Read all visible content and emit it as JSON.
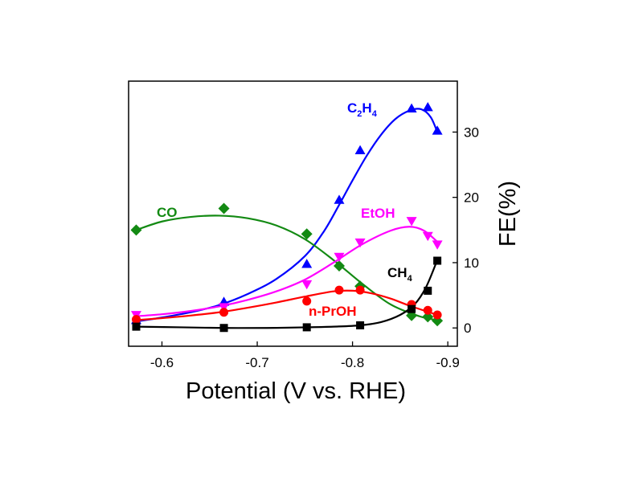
{
  "chart_data": {
    "type": "scatter",
    "xlabel": "Potential (V vs. RHE)",
    "ylabel": "FE(%)",
    "xlim": [
      -0.565,
      -0.91
    ],
    "ylim": [
      -2.8,
      37.8
    ],
    "x_reversed": true,
    "y_axis_side": "right",
    "x_ticks": [
      -0.6,
      -0.7,
      -0.8,
      -0.9
    ],
    "x_tick_labels": [
      "-0.6",
      "-0.7",
      "-0.8",
      "-0.9"
    ],
    "y_ticks": [
      0,
      10,
      20,
      30
    ],
    "y_tick_labels": [
      "0",
      "10",
      "20",
      "30"
    ],
    "grid": false,
    "series": [
      {
        "key": "c2h4",
        "label_main": "C",
        "label_sub1": "2",
        "label_mid": "H",
        "label_sub2": "4",
        "color": "#0000ff",
        "marker": "triangle-up",
        "x": [
          -0.573,
          -0.665,
          -0.752,
          -0.786,
          -0.808,
          -0.862,
          -0.879,
          -0.889
        ],
        "y": [
          1.2,
          4.0,
          9.8,
          19.6,
          27.2,
          33.6,
          33.8,
          30.2
        ],
        "curve_x": [
          -0.573,
          -0.6,
          -0.63,
          -0.66,
          -0.69,
          -0.72,
          -0.75,
          -0.77,
          -0.785,
          -0.8,
          -0.815,
          -0.83,
          -0.845,
          -0.86,
          -0.872,
          -0.882,
          -0.889
        ],
        "curve_y": [
          1.0,
          1.6,
          2.4,
          3.5,
          5.2,
          7.5,
          11.0,
          14.8,
          18.6,
          22.6,
          26.4,
          29.6,
          32.0,
          33.3,
          33.5,
          32.3,
          30.0
        ]
      },
      {
        "key": "co",
        "label": "CO",
        "color": "#138a13",
        "marker": "diamond",
        "x": [
          -0.573,
          -0.665,
          -0.752,
          -0.786,
          -0.808,
          -0.862,
          -0.879,
          -0.889
        ],
        "y": [
          15.0,
          18.3,
          14.4,
          9.5,
          6.4,
          1.9,
          1.7,
          1.1
        ],
        "curve_x": [
          -0.573,
          -0.6,
          -0.63,
          -0.66,
          -0.69,
          -0.72,
          -0.75,
          -0.78,
          -0.81,
          -0.84,
          -0.87,
          -0.889
        ],
        "curve_y": [
          15.0,
          16.3,
          17.0,
          17.2,
          16.8,
          15.7,
          13.6,
          10.4,
          6.8,
          3.6,
          1.8,
          1.2
        ]
      },
      {
        "key": "etoh",
        "label": "EtOH",
        "color": "#ff00ff",
        "marker": "triangle-down",
        "x": [
          -0.573,
          -0.665,
          -0.752,
          -0.786,
          -0.808,
          -0.862,
          -0.879,
          -0.889
        ],
        "y": [
          2.0,
          3.2,
          6.7,
          10.9,
          13.1,
          16.4,
          14.1,
          12.8
        ],
        "curve_x": [
          -0.573,
          -0.6,
          -0.63,
          -0.66,
          -0.69,
          -0.72,
          -0.75,
          -0.78,
          -0.81,
          -0.84,
          -0.86,
          -0.875,
          -0.889
        ],
        "curve_y": [
          1.8,
          2.1,
          2.6,
          3.3,
          4.3,
          5.6,
          7.4,
          10.0,
          12.8,
          14.9,
          15.5,
          14.9,
          13.2
        ]
      },
      {
        "key": "nproh",
        "label": "n-PrOH",
        "color": "#ff0000",
        "marker": "circle",
        "x": [
          -0.573,
          -0.665,
          -0.752,
          -0.786,
          -0.808,
          -0.862,
          -0.879,
          -0.889
        ],
        "y": [
          1.3,
          2.4,
          4.1,
          5.8,
          5.8,
          3.6,
          2.7,
          2.0
        ],
        "curve_x": [
          -0.573,
          -0.6,
          -0.63,
          -0.66,
          -0.69,
          -0.72,
          -0.75,
          -0.78,
          -0.8,
          -0.82,
          -0.84,
          -0.86,
          -0.889
        ],
        "curve_y": [
          1.2,
          1.5,
          1.9,
          2.4,
          3.1,
          3.9,
          4.8,
          5.6,
          5.7,
          5.3,
          4.5,
          3.4,
          2.0
        ]
      },
      {
        "key": "ch4",
        "label_main": "CH",
        "label_sub2": "4",
        "color": "#000000",
        "marker": "square",
        "x": [
          -0.573,
          -0.665,
          -0.752,
          -0.808,
          -0.862,
          -0.879,
          -0.889
        ],
        "y": [
          0.2,
          0.0,
          0.1,
          0.4,
          2.9,
          5.7,
          10.3
        ],
        "curve_x": [
          -0.573,
          -0.62,
          -0.665,
          -0.71,
          -0.752,
          -0.78,
          -0.808,
          -0.83,
          -0.85,
          -0.865,
          -0.877,
          -0.889
        ],
        "curve_y": [
          0.2,
          0.1,
          0.0,
          0.0,
          0.1,
          0.2,
          0.4,
          0.9,
          2.0,
          3.6,
          6.2,
          10.4
        ]
      }
    ]
  }
}
